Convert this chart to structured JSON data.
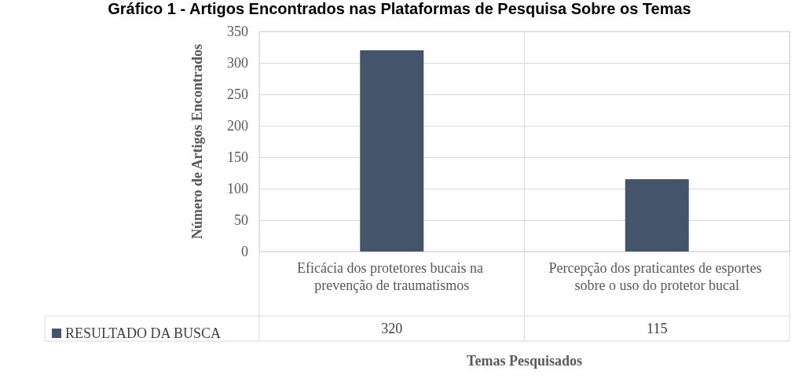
{
  "chart_data": {
    "type": "bar",
    "title": "Gráfico 1 - Artigos Encontrados nas Plataformas de Pesquisa Sobre os Temas",
    "xlabel": "Temas Pesquisados",
    "ylabel": "Número de Artigos Encontrados",
    "categories": [
      "Eficácia dos protetores bucais na prevenção de traumatismos",
      "Percepção dos praticantes de esportes sobre o uso do protetor bucal"
    ],
    "series": [
      {
        "name": "RESULTADO DA BUSCA",
        "color": "#44546a",
        "values": [
          320,
          115
        ]
      }
    ],
    "ylim": [
      0,
      350
    ],
    "yticks": [
      0,
      50,
      100,
      150,
      200,
      250,
      300,
      350
    ],
    "grid": true,
    "legend": "bottom",
    "data_labels": true
  }
}
